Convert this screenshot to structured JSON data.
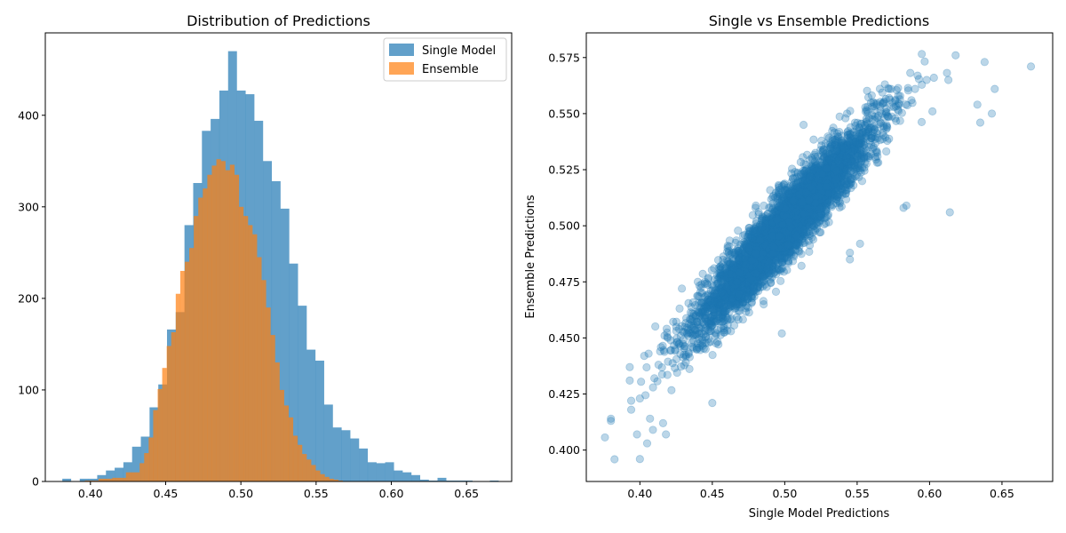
{
  "chart_data": [
    {
      "type": "bar",
      "subtype": "histogram",
      "title": "Distribution of Predictions",
      "xlabel": "",
      "ylabel": "",
      "xlim": [
        0.37,
        0.68
      ],
      "ylim": [
        0,
        490
      ],
      "xticks": [
        0.4,
        0.45,
        0.5,
        0.55,
        0.6,
        0.65
      ],
      "xtick_labels": [
        "0.40",
        "0.45",
        "0.50",
        "0.55",
        "0.60",
        "0.65"
      ],
      "yticks": [
        0,
        100,
        200,
        300,
        400
      ],
      "ytick_labels": [
        "0",
        "100",
        "200",
        "300",
        "400"
      ],
      "legend_position": "top-right",
      "series": [
        {
          "name": "Single Model",
          "color": "#1f77b4",
          "alpha": 0.7,
          "bins": [
            [
              0.3813,
              0.3871,
              3
            ],
            [
              0.3871,
              0.3929,
              0
            ],
            [
              0.3929,
              0.3987,
              3
            ],
            [
              0.3987,
              0.4045,
              3
            ],
            [
              0.4045,
              0.4103,
              7
            ],
            [
              0.4103,
              0.4161,
              12
            ],
            [
              0.4161,
              0.4219,
              15
            ],
            [
              0.4219,
              0.4277,
              21
            ],
            [
              0.4277,
              0.4335,
              38
            ],
            [
              0.4335,
              0.4393,
              49
            ],
            [
              0.4393,
              0.4451,
              81
            ],
            [
              0.4451,
              0.4509,
              106
            ],
            [
              0.4509,
              0.4567,
              166
            ],
            [
              0.4567,
              0.4625,
              185
            ],
            [
              0.4625,
              0.4683,
              280
            ],
            [
              0.4683,
              0.4741,
              326
            ],
            [
              0.4741,
              0.4799,
              383
            ],
            [
              0.4799,
              0.4857,
              396
            ],
            [
              0.4857,
              0.4915,
              427
            ],
            [
              0.4915,
              0.4973,
              470
            ],
            [
              0.4973,
              0.5031,
              427
            ],
            [
              0.5031,
              0.5089,
              423
            ],
            [
              0.5089,
              0.5147,
              394
            ],
            [
              0.5147,
              0.5205,
              350
            ],
            [
              0.5205,
              0.5263,
              328
            ],
            [
              0.5263,
              0.5321,
              298
            ],
            [
              0.5321,
              0.5379,
              238
            ],
            [
              0.5379,
              0.5437,
              192
            ],
            [
              0.5437,
              0.5495,
              144
            ],
            [
              0.5495,
              0.5553,
              132
            ],
            [
              0.5553,
              0.5611,
              84
            ],
            [
              0.5611,
              0.5669,
              59
            ],
            [
              0.5669,
              0.5727,
              56
            ],
            [
              0.5727,
              0.5785,
              47
            ],
            [
              0.5785,
              0.5843,
              36
            ],
            [
              0.5843,
              0.5901,
              21
            ],
            [
              0.5901,
              0.5959,
              20
            ],
            [
              0.5959,
              0.6017,
              21
            ],
            [
              0.6017,
              0.6075,
              12
            ],
            [
              0.6075,
              0.6133,
              10
            ],
            [
              0.6133,
              0.6191,
              7
            ],
            [
              0.6191,
              0.6249,
              2
            ],
            [
              0.6249,
              0.6307,
              1
            ],
            [
              0.6307,
              0.6365,
              4
            ],
            [
              0.6365,
              0.6423,
              1
            ],
            [
              0.6423,
              0.6481,
              1
            ],
            [
              0.6481,
              0.6539,
              1
            ],
            [
              0.6539,
              0.6597,
              0
            ],
            [
              0.6597,
              0.6655,
              0
            ],
            [
              0.6655,
              0.6713,
              1
            ]
          ]
        },
        {
          "name": "Ensemble",
          "color": "#ff7f0e",
          "alpha": 0.7,
          "bins": [
            [
              0.3963,
              0.4054,
              1
            ],
            [
              0.4054,
              0.4145,
              3
            ],
            [
              0.4145,
              0.4236,
              4
            ],
            [
              0.4236,
              0.4327,
              10
            ],
            [
              0.4327,
              0.4357,
              20
            ],
            [
              0.4357,
              0.4387,
              31
            ],
            [
              0.4387,
              0.4417,
              48
            ],
            [
              0.4417,
              0.4447,
              78
            ],
            [
              0.4447,
              0.4477,
              101
            ],
            [
              0.4477,
              0.4507,
              124
            ],
            [
              0.4507,
              0.4537,
              148
            ],
            [
              0.4537,
              0.4567,
              163
            ],
            [
              0.4567,
              0.4597,
              205
            ],
            [
              0.4597,
              0.4627,
              230
            ],
            [
              0.4627,
              0.4657,
              240
            ],
            [
              0.4657,
              0.4687,
              255
            ],
            [
              0.4687,
              0.4717,
              290
            ],
            [
              0.4717,
              0.4747,
              310
            ],
            [
              0.4747,
              0.4777,
              320
            ],
            [
              0.4777,
              0.4807,
              335
            ],
            [
              0.4807,
              0.4837,
              345
            ],
            [
              0.4837,
              0.4867,
              352
            ],
            [
              0.4867,
              0.4897,
              350
            ],
            [
              0.4897,
              0.4927,
              340
            ],
            [
              0.4927,
              0.4957,
              346
            ],
            [
              0.4957,
              0.4987,
              335
            ],
            [
              0.4987,
              0.5017,
              300
            ],
            [
              0.5017,
              0.5047,
              290
            ],
            [
              0.5047,
              0.5077,
              280
            ],
            [
              0.5077,
              0.5107,
              270
            ],
            [
              0.5107,
              0.5137,
              245
            ],
            [
              0.5137,
              0.5167,
              220
            ],
            [
              0.5167,
              0.5197,
              190
            ],
            [
              0.5197,
              0.5227,
              160
            ],
            [
              0.5227,
              0.5257,
              130
            ],
            [
              0.5257,
              0.5287,
              100
            ],
            [
              0.5287,
              0.5317,
              83
            ],
            [
              0.5317,
              0.5347,
              70
            ],
            [
              0.5347,
              0.5377,
              50
            ],
            [
              0.5377,
              0.5407,
              40
            ],
            [
              0.5407,
              0.5437,
              30
            ],
            [
              0.5437,
              0.5467,
              24
            ],
            [
              0.5467,
              0.5497,
              18
            ],
            [
              0.5497,
              0.5527,
              12
            ],
            [
              0.5527,
              0.5557,
              8
            ],
            [
              0.5557,
              0.5587,
              5
            ],
            [
              0.5587,
              0.5617,
              3
            ],
            [
              0.5617,
              0.5647,
              2
            ],
            [
              0.5647,
              0.5677,
              1
            ]
          ]
        }
      ]
    },
    {
      "type": "scatter",
      "title": "Single vs Ensemble Predictions",
      "xlabel": "Single Model Predictions",
      "ylabel": "Ensemble Predictions",
      "xlim": [
        0.363,
        0.685
      ],
      "ylim": [
        0.386,
        0.586
      ],
      "xticks": [
        0.4,
        0.45,
        0.5,
        0.55,
        0.6,
        0.65
      ],
      "xtick_labels": [
        "0.40",
        "0.45",
        "0.50",
        "0.55",
        "0.60",
        "0.65"
      ],
      "yticks": [
        0.4,
        0.425,
        0.45,
        0.475,
        0.5,
        0.525,
        0.55,
        0.575
      ],
      "ytick_labels": [
        "0.400",
        "0.425",
        "0.450",
        "0.475",
        "0.500",
        "0.525",
        "0.550",
        "0.575"
      ],
      "color": "#1f77b4",
      "alpha": 0.3,
      "n_points": 5000,
      "trend": {
        "intercept": 0.148,
        "slope": 0.703,
        "sigma": 0.0075
      },
      "x_distribution": {
        "mean": 0.5,
        "std": 0.03
      },
      "notable_points": [
        [
          0.38,
          0.414
        ],
        [
          0.38,
          0.413
        ],
        [
          0.4,
          0.396
        ],
        [
          0.405,
          0.403
        ],
        [
          0.393,
          0.431
        ],
        [
          0.393,
          0.437
        ],
        [
          0.394,
          0.418
        ],
        [
          0.394,
          0.422
        ],
        [
          0.398,
          0.407
        ],
        [
          0.4,
          0.423
        ],
        [
          0.403,
          0.442
        ],
        [
          0.406,
          0.443
        ],
        [
          0.407,
          0.414
        ],
        [
          0.409,
          0.409
        ],
        [
          0.41,
          0.432
        ],
        [
          0.416,
          0.412
        ],
        [
          0.418,
          0.407
        ],
        [
          0.417,
          0.451
        ],
        [
          0.429,
          0.472
        ],
        [
          0.44,
          0.475
        ],
        [
          0.452,
          0.451
        ],
        [
          0.45,
          0.421
        ],
        [
          0.498,
          0.452
        ],
        [
          0.513,
          0.545
        ],
        [
          0.528,
          0.532
        ],
        [
          0.543,
          0.55
        ],
        [
          0.572,
          0.557
        ],
        [
          0.59,
          0.561
        ],
        [
          0.618,
          0.576
        ],
        [
          0.638,
          0.573
        ],
        [
          0.67,
          0.571
        ],
        [
          0.645,
          0.561
        ],
        [
          0.643,
          0.55
        ],
        [
          0.633,
          0.554
        ],
        [
          0.635,
          0.546
        ],
        [
          0.614,
          0.506
        ],
        [
          0.603,
          0.566
        ],
        [
          0.613,
          0.565
        ],
        [
          0.598,
          0.565
        ],
        [
          0.602,
          0.551
        ],
        [
          0.545,
          0.488
        ],
        [
          0.545,
          0.485
        ],
        [
          0.552,
          0.492
        ],
        [
          0.582,
          0.508
        ],
        [
          0.584,
          0.509
        ],
        [
          0.56,
          0.54
        ],
        [
          0.555,
          0.53
        ]
      ]
    }
  ]
}
